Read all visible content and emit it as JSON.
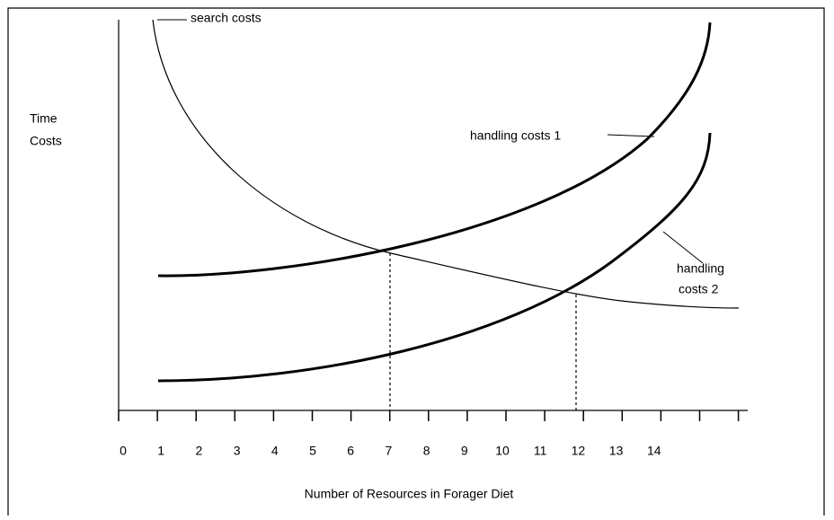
{
  "y_label": [
    "Time",
    "Costs"
  ],
  "curves": {
    "search": "search costs",
    "handling_1": "handling costs 1",
    "handling_2": [
      "handling",
      "costs 2"
    ]
  },
  "x_tick_labels": [
    "0",
    "1",
    "2",
    "3",
    "4",
    "5",
    "6",
    "7",
    "8",
    "9",
    "10",
    "11",
    "12",
    "13",
    "14"
  ],
  "x_label": "Number of Resources in Forager Diet"
}
